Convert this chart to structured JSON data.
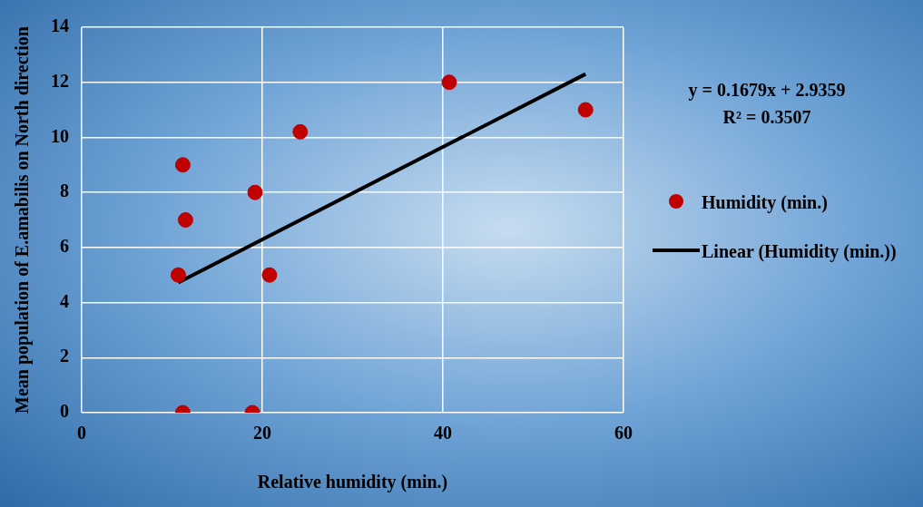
{
  "chart_data": {
    "type": "scatter",
    "xlabel": "Relative humidity (min.)",
    "ylabel": "Mean population of E.amabilis on North direction",
    "xlim": [
      0,
      60
    ],
    "xticks": [
      0,
      20,
      40,
      60
    ],
    "ylim": [
      0,
      14
    ],
    "yticks": [
      0,
      2,
      4,
      6,
      8,
      10,
      12,
      14
    ],
    "grid": true,
    "legend": "right",
    "series": [
      {
        "name": "Humidity (min.)",
        "type": "scatter",
        "marker": "circle",
        "color": "#c00000",
        "x": [
          10.7,
          11.2,
          11.5,
          11.2,
          19.2,
          18.9,
          20.8,
          24.2,
          40.7,
          55.8
        ],
        "values": [
          5,
          9,
          7,
          0,
          8,
          0,
          5,
          10.2,
          12,
          11
        ]
      },
      {
        "name": "Linear (Humidity (min.))",
        "type": "line",
        "marker": "none",
        "color": "#000000",
        "x": [
          10.7,
          55.8
        ],
        "values": [
          4.73,
          12.3
        ]
      }
    ],
    "annotations": [
      "y = 0.1679x + 2.9359",
      "R² = 0.3507"
    ]
  }
}
